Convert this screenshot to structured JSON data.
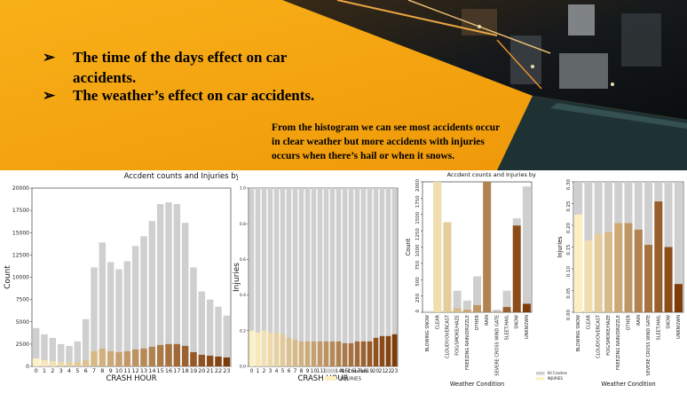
{
  "slide": {
    "bullets": [
      {
        "marker": "➢",
        "lines": [
          "The time of the days effect on car",
          "accidents."
        ]
      },
      {
        "marker": "➢",
        "lines": [
          "The weather’s effect on car accidents."
        ]
      }
    ],
    "caption_lines": [
      "From the histogram we can see most accidents occur",
      "in clear weather but more accidents with injuries",
      "occurs when there’s hail or when it snows."
    ],
    "colors": {
      "orange": "#f6a40e",
      "dark_band": "#1f3233",
      "city": "#0d1113"
    }
  },
  "chart_data": [
    {
      "type": "bar",
      "title": "Accdent counts and Injuries by CRASH HOUR",
      "xlabel": "CRASH HOUR",
      "ylabel": "Count",
      "ylim": [
        0,
        20000
      ],
      "yticks": [
        "0",
        "2500",
        "5000",
        "7500",
        "10000",
        "12500",
        "15000",
        "17500",
        "20000"
      ],
      "categories": [
        "0",
        "1",
        "2",
        "3",
        "4",
        "5",
        "6",
        "7",
        "8",
        "9",
        "10",
        "11",
        "12",
        "13",
        "14",
        "15",
        "16",
        "17",
        "18",
        "19",
        "20",
        "21",
        "22",
        "23"
      ],
      "series": [
        {
          "name": "",
          "values": [
            4300,
            3600,
            3200,
            2500,
            2300,
            2800,
            5300,
            11100,
            13900,
            11700,
            10900,
            11800,
            13500,
            14600,
            16300,
            18200,
            18400,
            18200,
            16100,
            11100,
            8400,
            7500,
            6700,
            5700
          ],
          "color": "#cfcfcf"
        },
        {
          "name": "",
          "values": [
            900,
            700,
            600,
            500,
            450,
            500,
            700,
            1700,
            2000,
            1700,
            1600,
            1700,
            1900,
            2000,
            2200,
            2400,
            2500,
            2500,
            2300,
            1600,
            1300,
            1200,
            1100,
            1000
          ],
          "colors_from": "#fdf0c0",
          "colors_to": "#7f3b08"
        }
      ]
    },
    {
      "type": "bar",
      "title": "",
      "xlabel": "CRASH HOUR",
      "ylabel": "Injuries",
      "ylim": [
        0,
        1.0
      ],
      "yticks": [
        "0.0",
        "0.2",
        "0.4",
        "0.6",
        "0.8",
        "1.0"
      ],
      "categories": [
        "0",
        "1",
        "2",
        "3",
        "4",
        "5",
        "6",
        "7",
        "8",
        "9",
        "10",
        "11",
        "12",
        "13",
        "14",
        "15",
        "16",
        "17",
        "18",
        "19",
        "20",
        "21",
        "22",
        "23"
      ],
      "series": [
        {
          "name": "All Crashes",
          "values": [
            1,
            1,
            1,
            1,
            1,
            1,
            1,
            1,
            1,
            1,
            1,
            1,
            1,
            1,
            1,
            1,
            1,
            1,
            1,
            1,
            1,
            1,
            1,
            1
          ],
          "color": "#cfcfcf"
        },
        {
          "name": "INJURIES",
          "values": [
            0.2,
            0.19,
            0.2,
            0.19,
            0.19,
            0.18,
            0.16,
            0.15,
            0.14,
            0.14,
            0.14,
            0.14,
            0.14,
            0.14,
            0.14,
            0.13,
            0.13,
            0.14,
            0.14,
            0.14,
            0.16,
            0.17,
            0.17,
            0.18
          ],
          "colors_from": "#fdf0c0",
          "colors_to": "#7f3b08"
        }
      ],
      "legend": "bottom-right"
    },
    {
      "type": "bar",
      "title": "Accdent counts and Injuries by Weather Condition",
      "xlabel": "Weather Condition",
      "ylabel": "Count",
      "ylim": [
        0,
        2000
      ],
      "yticks": [
        "0",
        "250",
        "500",
        "750",
        "1000",
        "1250",
        "1500",
        "1750",
        "2000"
      ],
      "categories": [
        "BLOWING SNOW",
        "CLEAR",
        "CLOUDY/OVERCAST",
        "FOG/SMOKE/HAZE",
        "FREEZING RAIN/DRIZZLE",
        "OTHER",
        "RAIN",
        "SEVERE CROSS WIND GATE",
        "SLEET/HAIL",
        "SNOW",
        "UNKNOWN"
      ],
      "series": [
        {
          "name": "",
          "values": [
            20,
            2000,
            1380,
            330,
            180,
            550,
            2000,
            40,
            330,
            1440,
            1930
          ],
          "color": "#cfcfcf"
        },
        {
          "name": "",
          "values": [
            5,
            2000,
            1380,
            60,
            40,
            110,
            2000,
            6,
            80,
            1330,
            130
          ],
          "colors_from": "#fdf0c0",
          "colors_to": "#7f3b08"
        }
      ]
    },
    {
      "type": "bar",
      "title": "",
      "xlabel": "Weather Condition",
      "ylabel": "Injuries",
      "ylim": [
        0,
        0.3
      ],
      "yticks": [
        "0.00",
        "0.05",
        "0.10",
        "0.15",
        "0.20",
        "0.25",
        "0.30"
      ],
      "categories": [
        "BLOWING SNOW",
        "CLEAR",
        "CLOUDY/OVERCAST",
        "FOG/SMOKE/HAZE",
        "FREEZING RAIN/DRIZZLE",
        "OTHER",
        "RAIN",
        "SEVERE CROSS WIND GATE",
        "SLEET/HAIL",
        "SNOW",
        "UNKNOWN"
      ],
      "series": [
        {
          "name": "All Crashes",
          "values": [
            1,
            1,
            1,
            1,
            1,
            1,
            1,
            1,
            1,
            1,
            1
          ],
          "color": "#cfcfcf"
        },
        {
          "name": "INJURIES",
          "values": [
            0.225,
            0.165,
            0.18,
            0.185,
            0.205,
            0.205,
            0.19,
            0.155,
            0.255,
            0.15,
            0.065
          ],
          "colors_from": "#fdf0c0",
          "colors_to": "#7f3b08"
        }
      ],
      "legend": "bottom-left"
    }
  ]
}
